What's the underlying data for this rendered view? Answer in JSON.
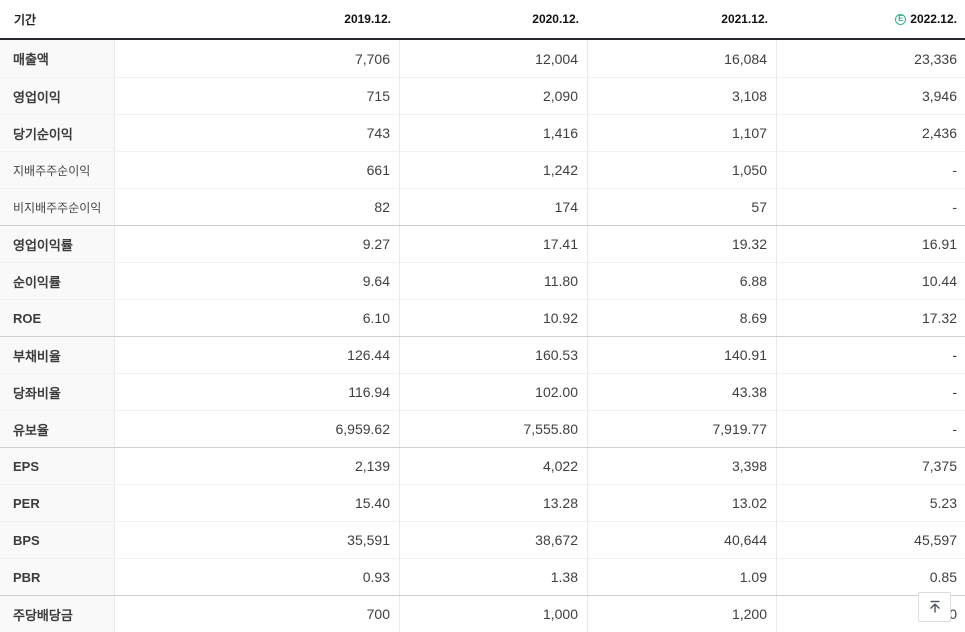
{
  "table": {
    "period_header": "기간",
    "columns": [
      {
        "label": "2019.12.",
        "estimate": false
      },
      {
        "label": "2020.12.",
        "estimate": false
      },
      {
        "label": "2021.12.",
        "estimate": false
      },
      {
        "label": "2022.12.",
        "estimate": true
      }
    ],
    "estimate_icon_letter": "E",
    "rows": [
      {
        "label": "매출액",
        "type": "main",
        "group_start": false,
        "values": [
          "7,706",
          "12,004",
          "16,084",
          "23,336"
        ]
      },
      {
        "label": "영업이익",
        "type": "main",
        "group_start": false,
        "values": [
          "715",
          "2,090",
          "3,108",
          "3,946"
        ]
      },
      {
        "label": "당기순이익",
        "type": "main",
        "group_start": false,
        "values": [
          "743",
          "1,416",
          "1,107",
          "2,436"
        ]
      },
      {
        "label": "지배주주순이익",
        "type": "sub",
        "group_start": false,
        "values": [
          "661",
          "1,242",
          "1,050",
          "-"
        ]
      },
      {
        "label": "비지배주주순이익",
        "type": "sub",
        "group_start": false,
        "values": [
          "82",
          "174",
          "57",
          "-"
        ]
      },
      {
        "label": "영업이익률",
        "type": "main",
        "group_start": true,
        "values": [
          "9.27",
          "17.41",
          "19.32",
          "16.91"
        ]
      },
      {
        "label": "순이익률",
        "type": "main",
        "group_start": false,
        "values": [
          "9.64",
          "11.80",
          "6.88",
          "10.44"
        ]
      },
      {
        "label": "ROE",
        "type": "main",
        "group_start": false,
        "values": [
          "6.10",
          "10.92",
          "8.69",
          "17.32"
        ]
      },
      {
        "label": "부채비율",
        "type": "main",
        "group_start": true,
        "values": [
          "126.44",
          "160.53",
          "140.91",
          "-"
        ]
      },
      {
        "label": "당좌비율",
        "type": "main",
        "group_start": false,
        "values": [
          "116.94",
          "102.00",
          "43.38",
          "-"
        ]
      },
      {
        "label": "유보율",
        "type": "main",
        "group_start": false,
        "values": [
          "6,959.62",
          "7,555.80",
          "7,919.77",
          "-"
        ]
      },
      {
        "label": "EPS",
        "type": "main",
        "group_start": true,
        "values": [
          "2,139",
          "4,022",
          "3,398",
          "7,375"
        ]
      },
      {
        "label": "PER",
        "type": "main",
        "group_start": false,
        "values": [
          "15.40",
          "13.28",
          "13.02",
          "5.23"
        ]
      },
      {
        "label": "BPS",
        "type": "main",
        "group_start": false,
        "values": [
          "35,591",
          "38,672",
          "40,644",
          "45,597"
        ]
      },
      {
        "label": "PBR",
        "type": "main",
        "group_start": false,
        "values": [
          "0.93",
          "1.38",
          "1.09",
          "0.85"
        ]
      },
      {
        "label": "주당배당금",
        "type": "main",
        "group_start": true,
        "values": [
          "700",
          "1,000",
          "1,200",
          "0"
        ]
      }
    ]
  },
  "scroll_top_button": {
    "icon": "up-arrow-to-bar"
  },
  "colors": {
    "estimate_green": "#33b188",
    "header_border": "#25282c",
    "group_divider": "#cfcfcf",
    "row_divider": "#f1f1f1",
    "label_column_bg": "#f9f9f9"
  }
}
